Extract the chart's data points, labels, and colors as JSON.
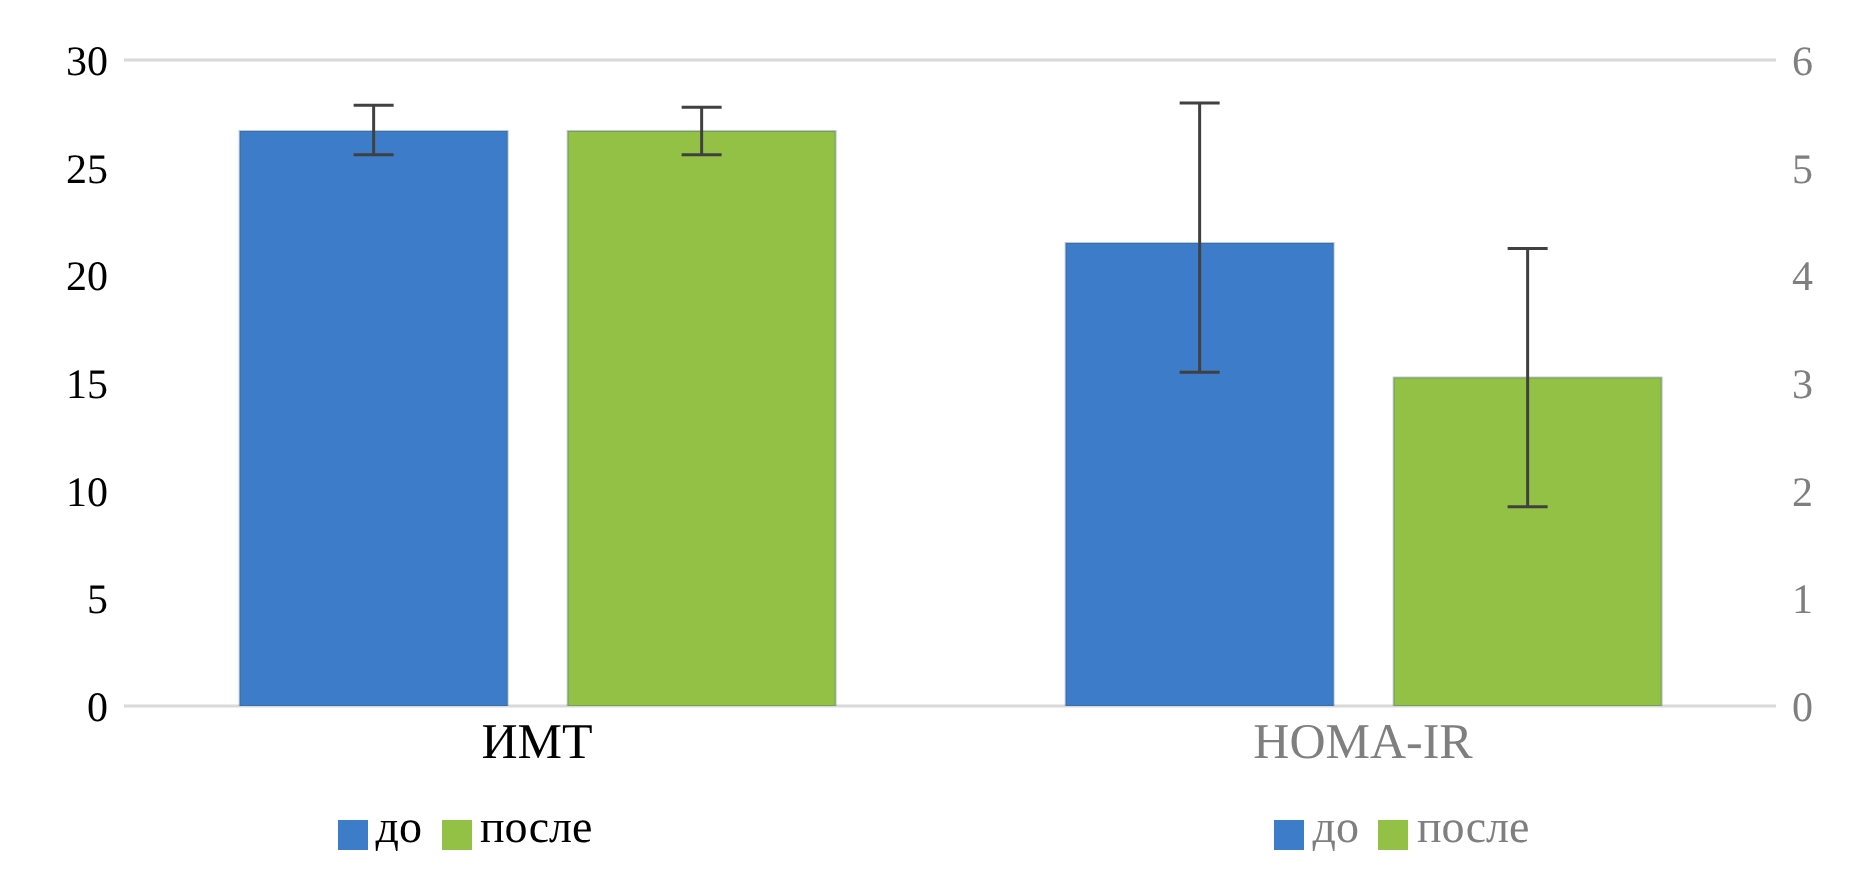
{
  "chart_data": {
    "type": "bar",
    "categories": [
      "ИМТ",
      "HOMA-IR"
    ],
    "series": [
      {
        "name": "до",
        "color": "#3d7cc9",
        "values": [
          26.7,
          null
        ],
        "errors": [
          [
            25.6,
            27.9
          ],
          null
        ]
      },
      {
        "name": "после",
        "color": "#93c145",
        "values": [
          26.7,
          null
        ],
        "errors": [
          [
            25.6,
            27.8
          ],
          null
        ]
      },
      {
        "name": "до",
        "color": "#3d7cc9",
        "values": [
          null,
          4.3
        ],
        "errors": [
          null,
          [
            3.1,
            5.6
          ]
        ],
        "axis": "y2"
      },
      {
        "name": "после",
        "color": "#93c145",
        "values": [
          null,
          3.05
        ],
        "errors": [
          null,
          [
            1.85,
            4.25
          ]
        ],
        "axis": "y2"
      }
    ],
    "ylim": [
      0,
      30
    ],
    "yticks": [
      0,
      5,
      10,
      15,
      20,
      25,
      30
    ],
    "y2lim": [
      0,
      6
    ],
    "y2ticks": [
      0,
      1,
      2,
      3,
      4,
      5,
      6
    ],
    "grid": "y",
    "legend": "bottom"
  }
}
